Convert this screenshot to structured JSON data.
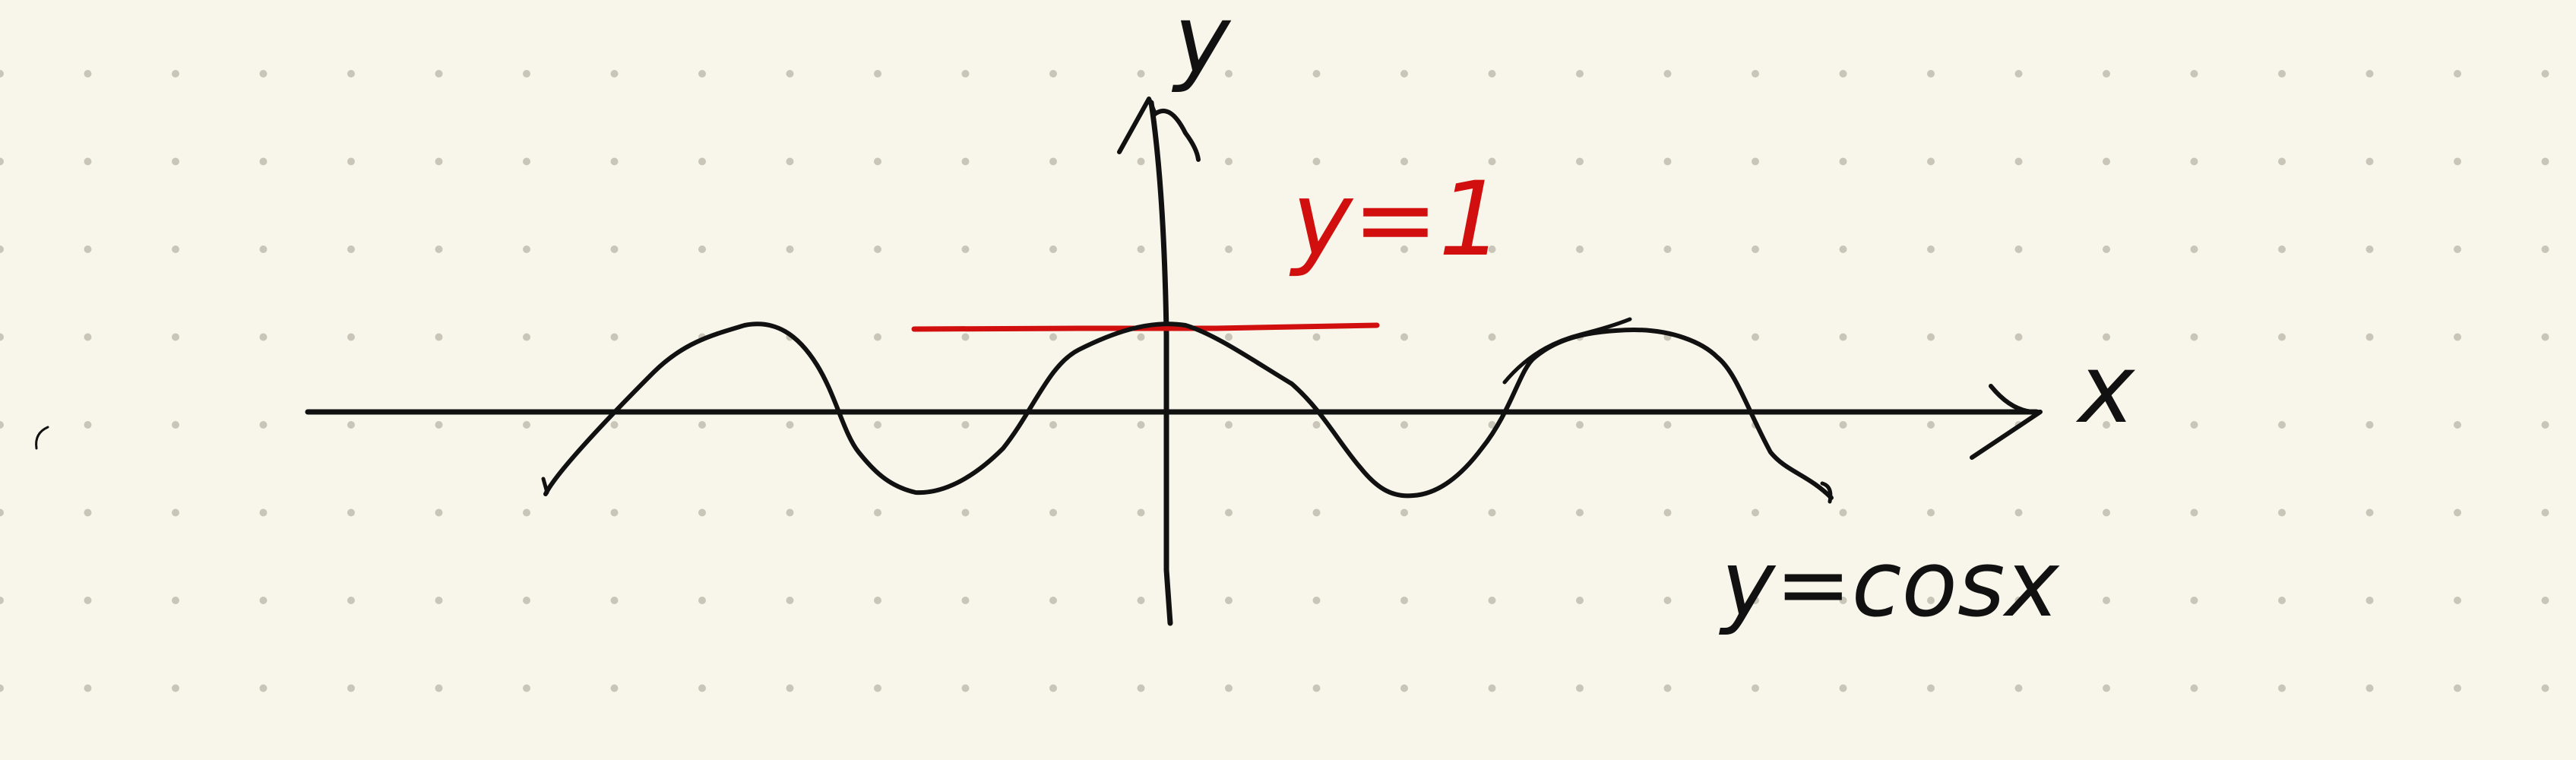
{
  "colors": {
    "background": "#f8f6ea",
    "dot_grid": "#c9c6b9",
    "ink_black": "#111111",
    "ink_red": "#d10f0f"
  },
  "labels": {
    "y_axis": "y",
    "x_axis": "x",
    "horizontal_line": "y=1",
    "curve": "y=cosx"
  }
}
